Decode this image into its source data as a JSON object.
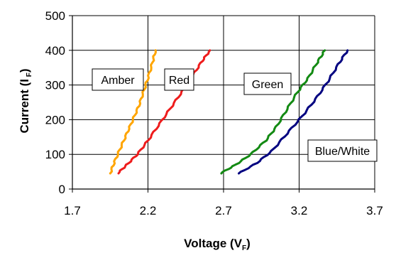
{
  "chart_data": {
    "type": "line",
    "title": "",
    "xlabel": {
      "main": "Voltage (V",
      "sub": "F",
      "close": ")"
    },
    "ylabel": {
      "main": "Current (I",
      "sub": " F",
      "close": ")"
    },
    "xlim": [
      1.7,
      3.7
    ],
    "ylim": [
      0,
      500
    ],
    "xticks": [
      "1.7",
      "2.2",
      "2.7",
      "3.2",
      "3.7"
    ],
    "yticks": [
      "0",
      "100",
      "200",
      "300",
      "400",
      "500"
    ],
    "grid": {
      "x": true,
      "y": true
    },
    "series": [
      {
        "name": "Amber",
        "color": "#ffa500",
        "x": [
          1.95,
          1.98,
          2.02,
          2.06,
          2.1,
          2.14,
          2.17,
          2.2,
          2.23,
          2.25
        ],
        "y": [
          45,
          80,
          120,
          160,
          200,
          240,
          280,
          320,
          365,
          400
        ]
      },
      {
        "name": "Red",
        "color": "#ee1c1c",
        "x": [
          2.0,
          2.06,
          2.13,
          2.2,
          2.28,
          2.36,
          2.44,
          2.5,
          2.56,
          2.61
        ],
        "y": [
          45,
          70,
          100,
          140,
          190,
          240,
          290,
          330,
          370,
          400
        ]
      },
      {
        "name": "Green",
        "color": "#138a13",
        "x": [
          2.68,
          2.78,
          2.88,
          2.98,
          3.05,
          3.12,
          3.19,
          3.26,
          3.32,
          3.37
        ],
        "y": [
          45,
          70,
          100,
          140,
          180,
          230,
          280,
          320,
          365,
          400
        ]
      },
      {
        "name": "Blue/White",
        "color": "#000080",
        "x": [
          2.8,
          2.92,
          3.02,
          3.12,
          3.22,
          3.31,
          3.39,
          3.46,
          3.52
        ],
        "y": [
          45,
          75,
          110,
          160,
          210,
          260,
          310,
          360,
          400
        ]
      }
    ]
  }
}
